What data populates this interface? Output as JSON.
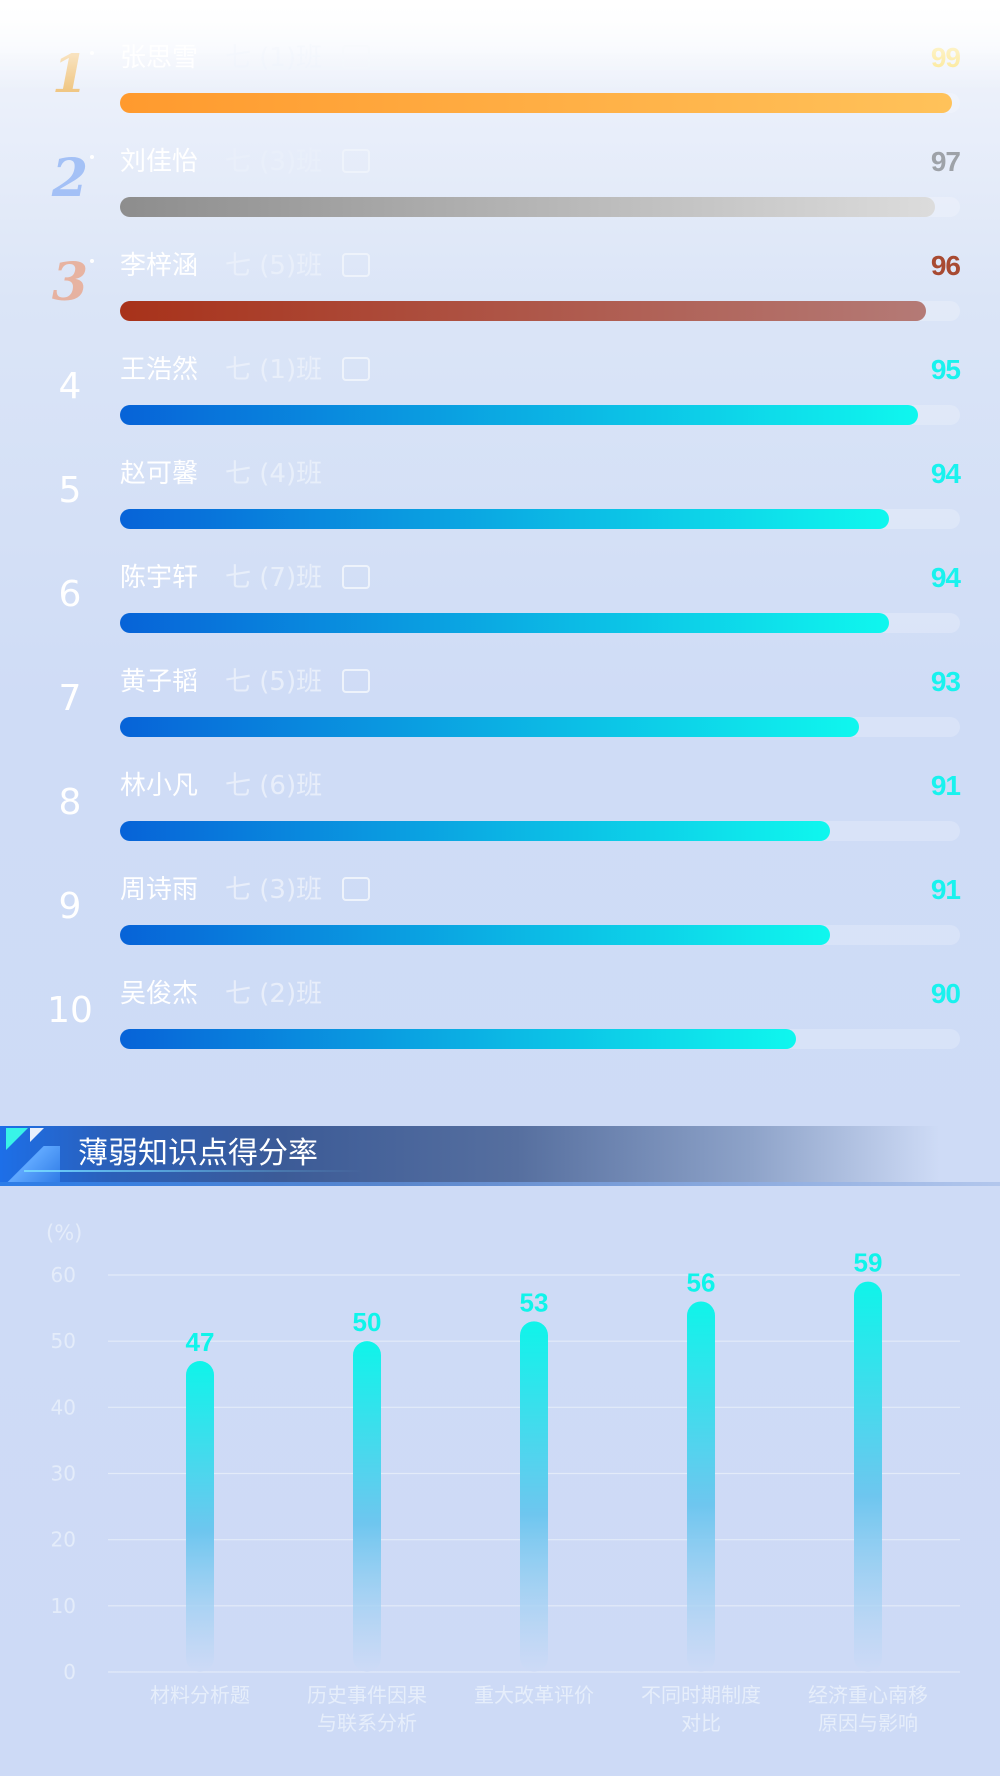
{
  "ranking": [
    {
      "rank": "1",
      "name": "张思雪",
      "class": "七 (1)班",
      "score": "99",
      "progress": 99,
      "style": "gold",
      "tag": true
    },
    {
      "rank": "2",
      "name": "刘佳怡",
      "class": "七 (3)班",
      "score": "97",
      "progress": 97,
      "style": "silver",
      "tag": true
    },
    {
      "rank": "3",
      "name": "李梓涵",
      "class": "七 (5)班",
      "score": "96",
      "progress": 96,
      "style": "bronze",
      "tag": true
    },
    {
      "rank": "4",
      "name": "王浩然",
      "class": "七 (1)班",
      "score": "95",
      "progress": 95,
      "style": "blue",
      "tag": true
    },
    {
      "rank": "5",
      "name": "赵可馨",
      "class": "七 (4)班",
      "score": "94",
      "progress": 91.5,
      "style": "blue",
      "tag": false
    },
    {
      "rank": "6",
      "name": "陈宇轩",
      "class": "七 (7)班",
      "score": "94",
      "progress": 91.5,
      "style": "blue",
      "tag": true
    },
    {
      "rank": "7",
      "name": "黄子韬",
      "class": "七 (5)班",
      "score": "93",
      "progress": 88,
      "style": "blue",
      "tag": true
    },
    {
      "rank": "8",
      "name": "林小凡",
      "class": "七 (6)班",
      "score": "91",
      "progress": 84.5,
      "style": "blue",
      "tag": false
    },
    {
      "rank": "9",
      "name": "周诗雨",
      "class": "七 (3)班",
      "score": "91",
      "progress": 84.5,
      "style": "blue",
      "tag": true
    },
    {
      "rank": "10",
      "name": "吴俊杰",
      "class": "七 (2)班",
      "score": "90",
      "progress": 80.5,
      "style": "blue",
      "tag": false
    }
  ],
  "colors": {
    "gold_score": "#fbe27a",
    "silver_score": "#9ea2a8",
    "bronze_score": "#a84a32",
    "blue_score": "#19f2ee",
    "gold_bar": [
      "#ff9a2e",
      "#ffc25a"
    ],
    "silver_bar": [
      "#8d8d8d",
      "#dcdcdc"
    ],
    "bronze_bar": [
      "#a8321a",
      "#b47a76"
    ],
    "blue_bar": [
      "#0763d8",
      "#0ff7ee"
    ],
    "chart_bar_top": "#0ff4ea",
    "chart_bar_bottom": "#cddaf6"
  },
  "section": {
    "title": "薄弱知识点得分率"
  },
  "chart_data": {
    "type": "bar",
    "unit_label": "(%)",
    "categories": [
      [
        "材料分析题"
      ],
      [
        "历史事件因果",
        "与联系分析"
      ],
      [
        "重大改革评价"
      ],
      [
        "不同时期制度",
        "对比"
      ],
      [
        "经济重心南移",
        "原因与影响"
      ]
    ],
    "values": [
      47,
      50,
      53,
      56,
      59
    ],
    "yticks": [
      "60",
      "50",
      "40",
      "30",
      "20",
      "10",
      "0"
    ],
    "ylim": [
      0,
      60
    ],
    "grid": true
  }
}
